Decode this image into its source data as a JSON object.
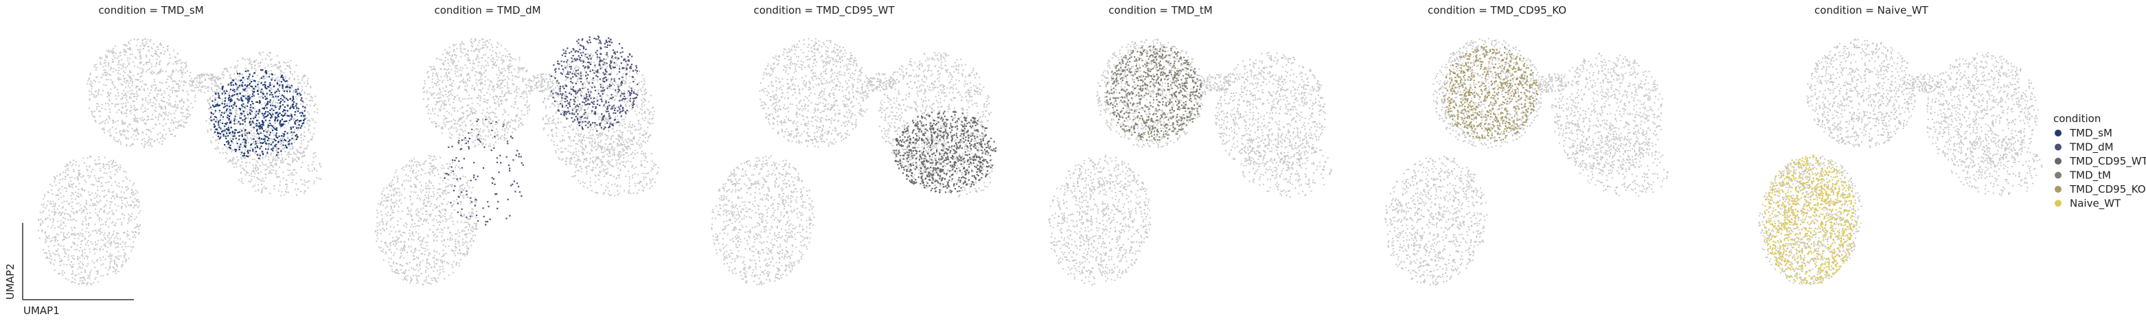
{
  "chart_data": {
    "type": "scatter",
    "title": "",
    "xlabel": "UMAP1",
    "ylabel": "UMAP2",
    "background_color": "#c8c8c8",
    "grid": false,
    "legend_placement": "right",
    "legend": {
      "title": "condition",
      "entries": [
        {
          "label": "TMD_sM",
          "color": "#1f3a72"
        },
        {
          "label": "TMD_dM",
          "color": "#4b5175"
        },
        {
          "label": "TMD_CD95_WT",
          "color": "#666666"
        },
        {
          "label": "TMD_tM",
          "color": "#837e70"
        },
        {
          "label": "TMD_CD95_KO",
          "color": "#a89b68"
        },
        {
          "label": "Naive_WT",
          "color": "#dcc95a"
        }
      ]
    },
    "panels": [
      {
        "title": "condition = TMD_sM",
        "highlight": "TMD_sM",
        "color": "#1f3a72",
        "region": "upper-right cluster"
      },
      {
        "title": "condition = TMD_dM",
        "highlight": "TMD_dM",
        "color": "#4b5175",
        "region": "upper-right cluster (top)"
      },
      {
        "title": "condition = TMD_CD95_WT",
        "highlight": "TMD_CD95_WT",
        "color": "#666666",
        "region": "lower-right cluster"
      },
      {
        "title": "condition = TMD_tM",
        "highlight": "TMD_tM",
        "color": "#837e70",
        "region": "upper-left cluster"
      },
      {
        "title": "condition = TMD_CD95_KO",
        "highlight": "TMD_CD95_KO",
        "color": "#a89b68",
        "region": "upper-left cluster"
      },
      {
        "title": "condition = Naive_WT",
        "highlight": "Naive_WT",
        "color": "#dcc95a",
        "region": "lower-left cluster"
      }
    ]
  }
}
